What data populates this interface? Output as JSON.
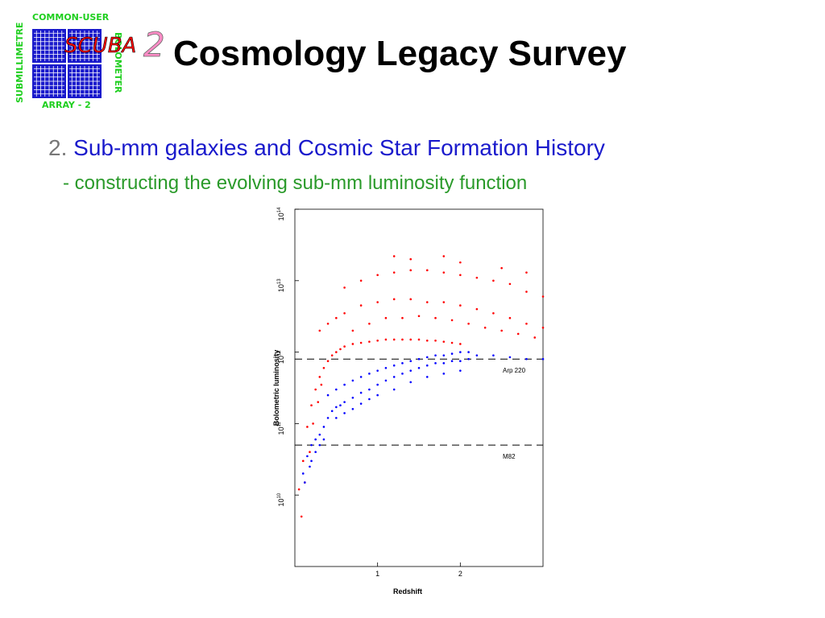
{
  "logo": {
    "top_text": "COMMON-USER",
    "left_text": "SUBMILLIMETRE",
    "right_text": "BOLOMETER",
    "bottom_text": "ARRAY - 2",
    "name": "SCUBA",
    "superscript": "2",
    "colors": {
      "frame": "#1fcf1f",
      "detector": "#1a1acc",
      "name": "#ff0000",
      "superscript": "#ff8cc6"
    }
  },
  "slide": {
    "title": "Cosmology Legacy Survey",
    "section_number": "2.",
    "section_title": "Sub-mm galaxies and Cosmic Star Formation History",
    "subpoint": "- constructing the evolving sub-mm luminosity function"
  },
  "chart_data": {
    "type": "scatter",
    "xlabel": "Redshift",
    "ylabel": "Bolometric luminosity",
    "xlim": [
      0,
      3
    ],
    "ylog": true,
    "ylim": [
      1000000000.0,
      100000000000000.0
    ],
    "xticks": [
      1,
      2
    ],
    "xtick_labels": [
      "1",
      "2"
    ],
    "yticks": [
      10000000000.0,
      100000000000.0,
      1000000000000.0,
      10000000000000.0,
      100000000000000.0
    ],
    "ytick_labels": [
      {
        "base": "10",
        "exp": "10"
      },
      {
        "base": "10",
        "exp": "11"
      },
      {
        "base": "10",
        "exp": "12"
      },
      {
        "base": "10",
        "exp": "13"
      },
      {
        "base": "10",
        "exp": "14"
      }
    ],
    "reference_lines": [
      {
        "label": "Arp 220",
        "y": 800000000000.0,
        "style": "dashed"
      },
      {
        "label": "M82",
        "y": 50000000000.0,
        "style": "dashed"
      }
    ],
    "series": [
      {
        "color": "#ff0000",
        "points": [
          [
            0.05,
            12000000000.0
          ],
          [
            0.1,
            30000000000.0
          ],
          [
            0.15,
            90000000000.0
          ],
          [
            0.2,
            180000000000.0
          ],
          [
            0.25,
            300000000000.0
          ],
          [
            0.3,
            450000000000.0
          ],
          [
            0.35,
            600000000000.0
          ],
          [
            0.4,
            750000000000.0
          ],
          [
            0.45,
            900000000000.0
          ],
          [
            0.5,
            1000000000000.0
          ],
          [
            0.55,
            1100000000000.0
          ],
          [
            0.6,
            1200000000000.0
          ],
          [
            0.7,
            1300000000000.0
          ],
          [
            0.8,
            1350000000000.0
          ],
          [
            0.9,
            1400000000000.0
          ],
          [
            1.0,
            1450000000000.0
          ],
          [
            1.1,
            1500000000000.0
          ],
          [
            1.2,
            1500000000000.0
          ],
          [
            1.3,
            1500000000000.0
          ],
          [
            1.4,
            1500000000000.0
          ],
          [
            1.5,
            1500000000000.0
          ],
          [
            1.6,
            1450000000000.0
          ],
          [
            1.7,
            1450000000000.0
          ],
          [
            1.8,
            1400000000000.0
          ],
          [
            1.9,
            1350000000000.0
          ],
          [
            2.0,
            1300000000000.0
          ],
          [
            0.5,
            3000000000000.0
          ],
          [
            0.6,
            3500000000000.0
          ],
          [
            0.8,
            4500000000000.0
          ],
          [
            1.0,
            5000000000000.0
          ],
          [
            1.2,
            5500000000000.0
          ],
          [
            1.4,
            5500000000000.0
          ],
          [
            1.6,
            5000000000000.0
          ],
          [
            1.8,
            5000000000000.0
          ],
          [
            2.0,
            4500000000000.0
          ],
          [
            2.2,
            4000000000000.0
          ],
          [
            2.4,
            3500000000000.0
          ],
          [
            2.6,
            3000000000000.0
          ],
          [
            2.8,
            2500000000000.0
          ],
          [
            3.0,
            2200000000000.0
          ],
          [
            0.6,
            8000000000000.0
          ],
          [
            0.8,
            10000000000000.0
          ],
          [
            1.0,
            12000000000000.0
          ],
          [
            1.2,
            13000000000000.0
          ],
          [
            1.4,
            14000000000000.0
          ],
          [
            1.6,
            14000000000000.0
          ],
          [
            1.8,
            13000000000000.0
          ],
          [
            2.0,
            12000000000000.0
          ],
          [
            2.2,
            11000000000000.0
          ],
          [
            2.4,
            10000000000000.0
          ],
          [
            2.6,
            9000000000000.0
          ],
          [
            2.8,
            7000000000000.0
          ],
          [
            3.0,
            6000000000000.0
          ],
          [
            1.2,
            22000000000000.0
          ],
          [
            1.4,
            20000000000000.0
          ],
          [
            1.8,
            22000000000000.0
          ],
          [
            2.0,
            18000000000000.0
          ],
          [
            2.5,
            15000000000000.0
          ],
          [
            2.8,
            13000000000000.0
          ],
          [
            0.3,
            2000000000000.0
          ],
          [
            0.4,
            2500000000000.0
          ],
          [
            0.7,
            2000000000000.0
          ],
          [
            0.9,
            2500000000000.0
          ],
          [
            1.1,
            3000000000000.0
          ],
          [
            1.3,
            3000000000000.0
          ],
          [
            1.5,
            3200000000000.0
          ],
          [
            1.7,
            3000000000000.0
          ],
          [
            1.9,
            2800000000000.0
          ],
          [
            2.1,
            2500000000000.0
          ],
          [
            2.3,
            2200000000000.0
          ],
          [
            2.5,
            2000000000000.0
          ],
          [
            2.7,
            1800000000000.0
          ],
          [
            2.9,
            1600000000000.0
          ],
          [
            0.08,
            5000000000.0
          ],
          [
            0.12,
            15000000000.0
          ],
          [
            0.18,
            40000000000.0
          ],
          [
            0.22,
            100000000000.0
          ],
          [
            0.28,
            200000000000.0
          ],
          [
            0.32,
            350000000000.0
          ]
        ]
      },
      {
        "color": "#0000ff",
        "points": [
          [
            0.1,
            20000000000.0
          ],
          [
            0.15,
            35000000000.0
          ],
          [
            0.2,
            50000000000.0
          ],
          [
            0.25,
            60000000000.0
          ],
          [
            0.3,
            70000000000.0
          ],
          [
            0.35,
            90000000000.0
          ],
          [
            0.4,
            120000000000.0
          ],
          [
            0.45,
            150000000000.0
          ],
          [
            0.5,
            170000000000.0
          ],
          [
            0.55,
            180000000000.0
          ],
          [
            0.6,
            200000000000.0
          ],
          [
            0.7,
            230000000000.0
          ],
          [
            0.8,
            270000000000.0
          ],
          [
            0.9,
            300000000000.0
          ],
          [
            1.0,
            350000000000.0
          ],
          [
            1.1,
            400000000000.0
          ],
          [
            1.2,
            450000000000.0
          ],
          [
            1.3,
            500000000000.0
          ],
          [
            1.4,
            550000000000.0
          ],
          [
            1.5,
            600000000000.0
          ],
          [
            1.6,
            650000000000.0
          ],
          [
            1.7,
            700000000000.0
          ],
          [
            1.8,
            700000000000.0
          ],
          [
            1.9,
            750000000000.0
          ],
          [
            2.0,
            750000000000.0
          ],
          [
            2.1,
            800000000000.0
          ],
          [
            0.4,
            250000000000.0
          ],
          [
            0.5,
            300000000000.0
          ],
          [
            0.6,
            350000000000.0
          ],
          [
            0.7,
            400000000000.0
          ],
          [
            0.8,
            450000000000.0
          ],
          [
            0.9,
            500000000000.0
          ],
          [
            1.0,
            550000000000.0
          ],
          [
            1.1,
            600000000000.0
          ],
          [
            1.2,
            650000000000.0
          ],
          [
            1.3,
            700000000000.0
          ],
          [
            1.4,
            750000000000.0
          ],
          [
            1.5,
            800000000000.0
          ],
          [
            1.6,
            850000000000.0
          ],
          [
            1.7,
            900000000000.0
          ],
          [
            1.8,
            900000000000.0
          ],
          [
            1.9,
            950000000000.0
          ],
          [
            2.0,
            1000000000000.0
          ],
          [
            2.1,
            1000000000000.0
          ],
          [
            2.2,
            900000000000.0
          ],
          [
            2.4,
            900000000000.0
          ],
          [
            2.6,
            850000000000.0
          ],
          [
            2.8,
            800000000000.0
          ],
          [
            3.0,
            800000000000.0
          ],
          [
            0.5,
            120000000000.0
          ],
          [
            0.6,
            140000000000.0
          ],
          [
            0.7,
            160000000000.0
          ],
          [
            0.8,
            190000000000.0
          ],
          [
            0.9,
            220000000000.0
          ],
          [
            1.0,
            250000000000.0
          ],
          [
            1.2,
            300000000000.0
          ],
          [
            1.4,
            380000000000.0
          ],
          [
            1.6,
            450000000000.0
          ],
          [
            1.8,
            500000000000.0
          ],
          [
            2.0,
            550000000000.0
          ],
          [
            0.2,
            30000000000.0
          ],
          [
            0.25,
            40000000000.0
          ],
          [
            0.3,
            50000000000.0
          ],
          [
            0.18,
            25000000000.0
          ],
          [
            0.12,
            15000000000.0
          ],
          [
            0.35,
            60000000000.0
          ]
        ]
      }
    ]
  }
}
